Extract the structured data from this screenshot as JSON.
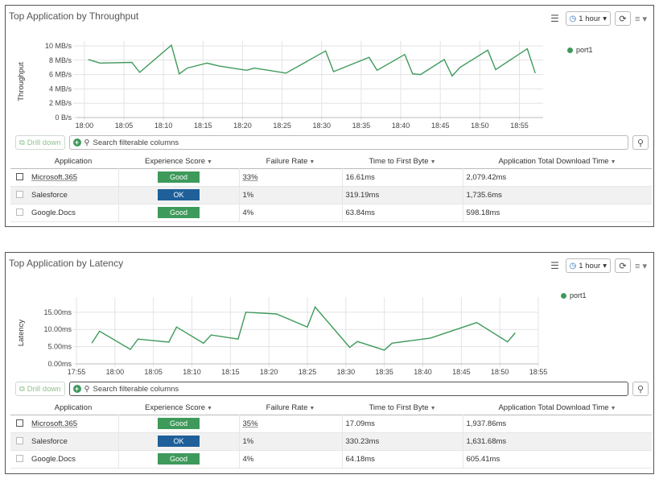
{
  "widgets": [
    {
      "title": "Top Application by Throughput",
      "time_range": "1 hour",
      "legend": "port1",
      "drill_label": "Drill down",
      "search_placeholder": "Search filterable columns",
      "columns": [
        "Application",
        "Experience Score",
        "Failure Rate",
        "Time to First Byte",
        "Application Total Download Time"
      ],
      "rows": [
        {
          "app": "Microsoft.365",
          "score": "Good",
          "score_color": "#3e9a5b",
          "fail": "33%",
          "ttfb": "16.61ms",
          "download": "2,079.42ms"
        },
        {
          "app": "Salesforce",
          "score": "OK",
          "score_color": "#1f5f9a",
          "fail": "1%",
          "ttfb": "319.19ms",
          "download": "1,735.6ms"
        },
        {
          "app": "Google.Docs",
          "score": "Good",
          "score_color": "#3e9a5b",
          "fail": "4%",
          "ttfb": "63.84ms",
          "download": "598.18ms"
        }
      ],
      "chart_data": {
        "type": "line",
        "ylabel": "Throughput",
        "xlabel": "",
        "y_ticks": [
          "0 B/s",
          "2 MB/s",
          "4 MB/s",
          "6 MB/s",
          "8 MB/s",
          "10 MB/s"
        ],
        "ylim": [
          0,
          10
        ],
        "x_ticks": [
          "18:00",
          "18:05",
          "18:10",
          "18:15",
          "18:20",
          "18:25",
          "18:30",
          "18:35",
          "18:40",
          "18:45",
          "18:50",
          "18:55"
        ],
        "xlim": [
          -1,
          58
        ],
        "grid": true,
        "series": [
          {
            "name": "port1",
            "color": "#3e9a5b",
            "x": [
              0.5,
              2,
              6,
              7,
              11,
              12,
              13,
              15.5,
              17,
              20.5,
              21.5,
              25.5,
              30.5,
              31.5,
              36,
              37,
              40.5,
              41.5,
              42.5,
              45.5,
              46.5,
              47.5,
              51,
              52,
              56,
              57
            ],
            "y": [
              8.1,
              7.6,
              7.7,
              6.3,
              10.1,
              6.1,
              6.9,
              7.6,
              7.2,
              6.6,
              6.9,
              6.2,
              9.3,
              6.4,
              8.4,
              6.6,
              8.8,
              6.1,
              6.0,
              8.1,
              5.8,
              7.0,
              9.4,
              6.7,
              9.6,
              6.2
            ]
          }
        ]
      }
    },
    {
      "title": "Top Application by Latency",
      "time_range": "1 hour",
      "legend": "port1",
      "drill_label": "Drill down",
      "search_placeholder": "Search filterable columns",
      "columns": [
        "Application",
        "Experience Score",
        "Failure Rate",
        "Time to First Byte",
        "Application Total Download Time"
      ],
      "rows": [
        {
          "app": "Microsoft.365",
          "score": "Good",
          "score_color": "#3e9a5b",
          "fail": "35%",
          "ttfb": "17.09ms",
          "download": "1,937.86ms"
        },
        {
          "app": "Salesforce",
          "score": "OK",
          "score_color": "#1f5f9a",
          "fail": "1%",
          "ttfb": "330.23ms",
          "download": "1,631.68ms"
        },
        {
          "app": "Google.Docs",
          "score": "Good",
          "score_color": "#3e9a5b",
          "fail": "4%",
          "ttfb": "64.18ms",
          "download": "605.41ms"
        }
      ],
      "chart_data": {
        "type": "line",
        "ylabel": "Latency",
        "xlabel": "",
        "y_ticks": [
          "0.00ms",
          "5.00ms",
          "10.00ms",
          "15.00ms"
        ],
        "ylim": [
          0,
          18
        ],
        "x_ticks": [
          "17:55",
          "18:00",
          "18:05",
          "18:10",
          "18:15",
          "18:20",
          "18:25",
          "18:30",
          "18:35",
          "18:40",
          "18:45",
          "18:50",
          "18:55"
        ],
        "xlim": [
          -5,
          55
        ],
        "grid": true,
        "series": [
          {
            "name": "port1",
            "color": "#3e9a5b",
            "x": [
              -3,
              -2,
              2,
              3,
              7,
              8,
              11.5,
              12.5,
              16,
              17,
              21,
              25,
              26,
              30.5,
              31.5,
              35,
              36,
              41,
              47,
              51,
              52
            ],
            "y": [
              6.0,
              9.5,
              4.2,
              7.2,
              6.3,
              10.7,
              6.0,
              8.4,
              7.2,
              15.0,
              14.5,
              10.7,
              16.5,
              4.8,
              6.5,
              4.0,
              6.0,
              7.5,
              12.0,
              6.4,
              9.0
            ]
          }
        ]
      }
    }
  ]
}
